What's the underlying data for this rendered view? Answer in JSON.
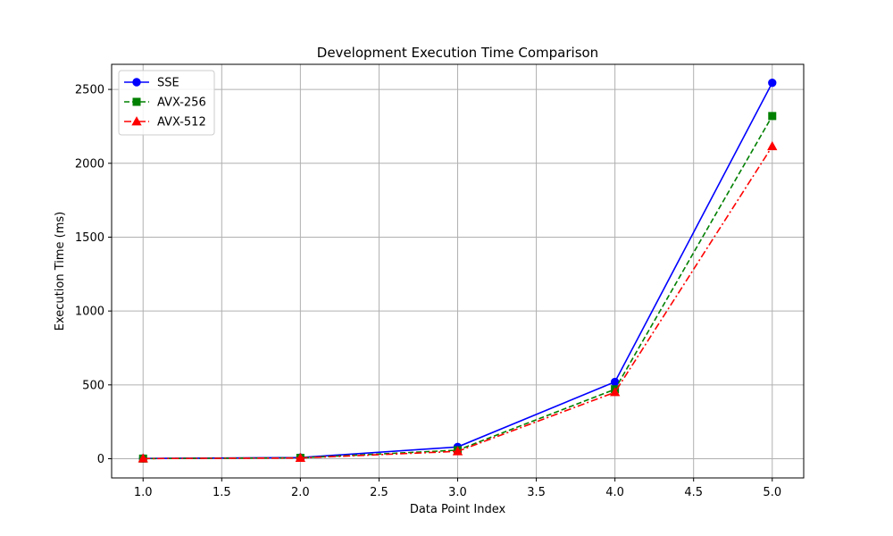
{
  "chart_data": {
    "type": "line",
    "title": "Development Execution Time Comparison",
    "xlabel": "Data Point Index",
    "ylabel": "Execution Time (ms)",
    "xlim": [
      0.8,
      5.2
    ],
    "ylim": [
      -130,
      2670
    ],
    "x_ticks": [
      1.0,
      1.5,
      2.0,
      2.5,
      3.0,
      3.5,
      4.0,
      4.5,
      5.0
    ],
    "x_tick_labels": [
      "1.0",
      "1.5",
      "2.0",
      "2.5",
      "3.0",
      "3.5",
      "4.0",
      "4.5",
      "5.0"
    ],
    "y_ticks": [
      0,
      500,
      1000,
      1500,
      2000,
      2500
    ],
    "y_tick_labels": [
      "0",
      "500",
      "1000",
      "1500",
      "2000",
      "2500"
    ],
    "grid": true,
    "legend_position": "top-left",
    "x": [
      1,
      2,
      3,
      4,
      5
    ],
    "series": [
      {
        "name": "SSE",
        "values": [
          2,
          8,
          80,
          520,
          2545
        ],
        "color": "#0000ff",
        "marker": "circle",
        "linestyle": "solid"
      },
      {
        "name": "AVX-256",
        "values": [
          1,
          6,
          58,
          470,
          2320
        ],
        "color": "#008000",
        "marker": "square",
        "linestyle": "dashed"
      },
      {
        "name": "AVX-512",
        "values": [
          1,
          5,
          50,
          450,
          2115
        ],
        "color": "#ff0000",
        "marker": "triangle",
        "linestyle": "dashdot"
      }
    ]
  }
}
